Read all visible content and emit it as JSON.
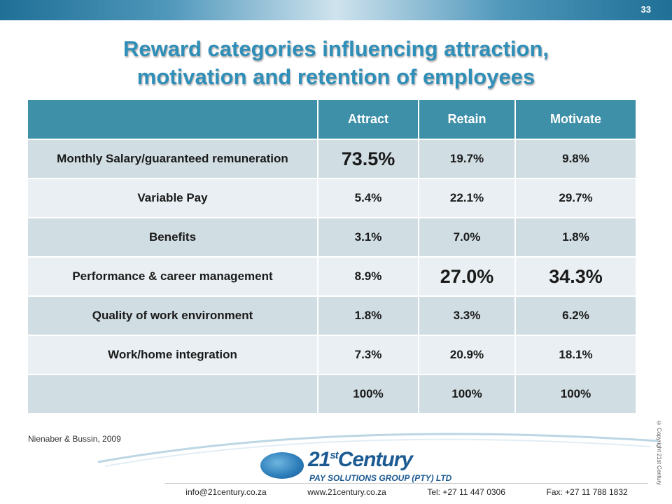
{
  "slide_number": "33",
  "title_line1": "Reward categories influencing attraction,",
  "title_line2": "motivation and retention of employees",
  "table": {
    "headers": [
      "",
      "Attract",
      "Retain",
      "Motivate"
    ],
    "rows": [
      {
        "label": "Monthly Salary/guaranteed remuneration",
        "attract": "73.5%",
        "retain": "19.7%",
        "motivate": "9.8%"
      },
      {
        "label": "Variable Pay",
        "attract": "5.4%",
        "retain": "22.1%",
        "motivate": "29.7%"
      },
      {
        "label": "Benefits",
        "attract": "3.1%",
        "retain": "7.0%",
        "motivate": "1.8%"
      },
      {
        "label": "Performance & career management",
        "attract": "8.9%",
        "retain": "27.0%",
        "motivate": "34.3%"
      },
      {
        "label": "Quality of work environment",
        "attract": "1.8%",
        "retain": "3.3%",
        "motivate": "6.2%"
      },
      {
        "label": "Work/home integration",
        "attract": "7.3%",
        "retain": "20.9%",
        "motivate": "18.1%"
      },
      {
        "label": "",
        "attract": "100%",
        "retain": "100%",
        "motivate": "100%"
      }
    ]
  },
  "source": "Nienaber & Bussin, 2009",
  "copyright": "© Copyright 21st Century",
  "logo": {
    "brand": "21",
    "brand_suffix": "st",
    "brand_word": "Century",
    "subtitle": "PAY SOLUTIONS GROUP (PTY) LTD"
  },
  "footer": {
    "email": "info@21century.co.za",
    "website": "www.21century.co.za",
    "tel": "Tel: +27 11 447 0306",
    "fax": "Fax: +27 11 788 1832"
  },
  "colors": {
    "title": "#2f8fb8",
    "header_bg": "#3e8fa8",
    "row_dark": "#d0dde3",
    "row_light": "#e9eff2",
    "brand": "#1b5a92"
  }
}
